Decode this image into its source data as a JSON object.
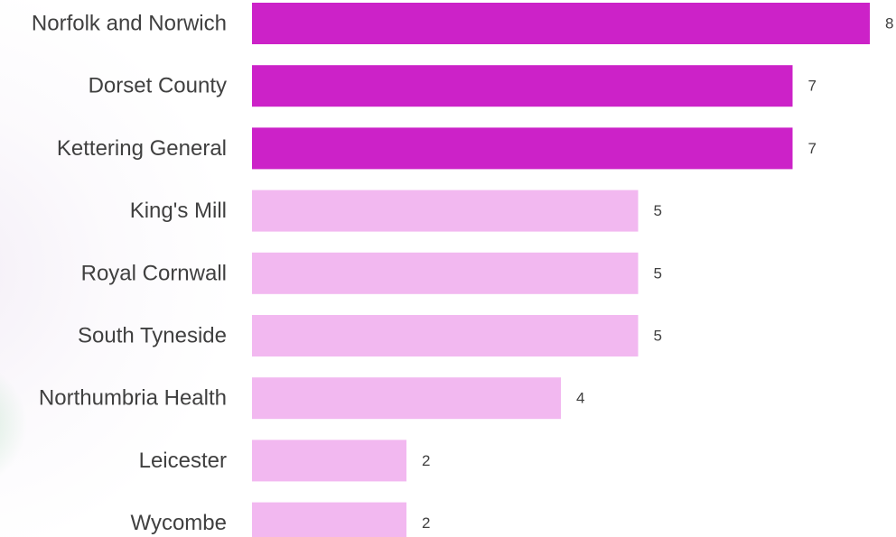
{
  "chart_data": {
    "type": "bar",
    "orientation": "horizontal",
    "categories": [
      "Norfolk and Norwich",
      "Dorset County",
      "Kettering General",
      "King's Mill",
      "Royal Cornwall",
      "South Tyneside",
      "Northumbria Health",
      "Leicester",
      "Wycombe"
    ],
    "values": [
      8,
      7,
      7,
      5,
      5,
      5,
      4,
      2,
      2
    ],
    "data_labels": [
      "8",
      "7",
      "7",
      "5",
      "5",
      "5",
      "4",
      "2",
      "2"
    ],
    "xlim": [
      0,
      8
    ],
    "grid": false,
    "legend": "none",
    "colors": {
      "highlight": "#cc22c8",
      "normal": "#f2b8f0",
      "label": "#404040"
    },
    "highlighted": [
      true,
      true,
      true,
      false,
      false,
      false,
      false,
      false,
      false
    ]
  }
}
